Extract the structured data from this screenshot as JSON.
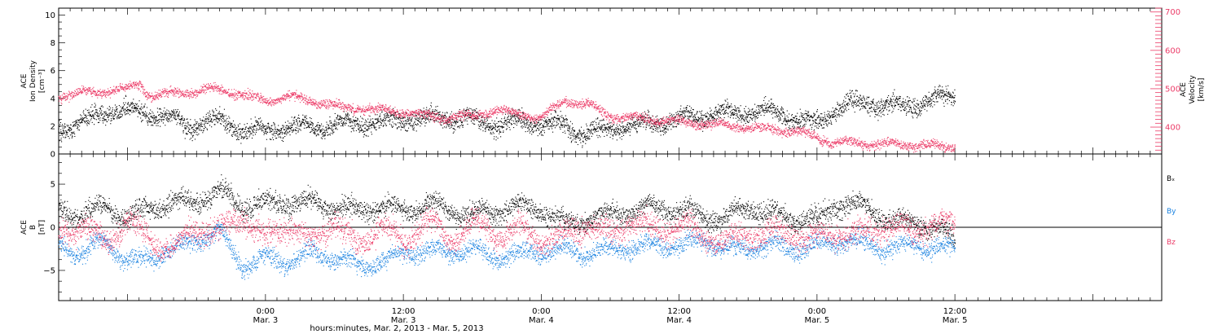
{
  "colors": {
    "black": "#000000",
    "blue": "#1a82e0",
    "red": "#ec3c68",
    "axis": "#000000"
  },
  "chart_data": [
    {
      "type": "scatter",
      "title": "",
      "xlabel": "hours:minutes, Mar. 2, 2013 - Mar. 5, 2013",
      "x_range_hours": [
        0,
        96
      ],
      "x_ticks": [
        {
          "t": 18,
          "time": "0:00",
          "date": "Mar. 3"
        },
        {
          "t": 30,
          "time": "12:00",
          "date": "Mar. 3"
        },
        {
          "t": 42,
          "time": "0:00",
          "date": "Mar. 4"
        },
        {
          "t": 54,
          "time": "12:00",
          "date": "Mar. 4"
        },
        {
          "t": 66,
          "time": "0:00",
          "date": "Mar. 5"
        },
        {
          "t": 78,
          "time": "12:00",
          "date": "Mar. 5"
        }
      ],
      "left_axis": {
        "label_lines": [
          "ACE",
          "Ion Density",
          "[cm⁻³]"
        ],
        "ylim": [
          0,
          10.5
        ],
        "ticks": [
          0,
          2,
          4,
          6,
          8,
          10
        ]
      },
      "right_axis": {
        "label_lines": [
          "ACE",
          "Velocity",
          "[km/s]"
        ],
        "ylim": [
          330,
          710
        ],
        "ticks": [
          400,
          500,
          600,
          700
        ]
      },
      "series": [
        {
          "axis": "left",
          "color": "black",
          "points": [
            [
              0,
              1.8
            ],
            [
              2,
              2.3
            ],
            [
              4,
              3.0
            ],
            [
              6,
              3.2
            ],
            [
              8,
              2.9
            ],
            [
              10,
              2.6
            ],
            [
              11,
              1.9
            ],
            [
              12,
              2.2
            ],
            [
              14,
              2.4
            ],
            [
              16,
              1.8
            ],
            [
              18,
              1.7
            ],
            [
              20,
              2.0
            ],
            [
              22,
              1.9
            ],
            [
              24,
              2.1
            ],
            [
              26,
              2.2
            ],
            [
              28,
              2.3
            ],
            [
              30,
              2.6
            ],
            [
              32,
              2.6
            ],
            [
              34,
              2.7
            ],
            [
              36,
              2.5
            ],
            [
              38,
              2.1
            ],
            [
              40,
              2.4
            ],
            [
              42,
              2.2
            ],
            [
              44,
              2.0
            ],
            [
              46,
              1.5
            ],
            [
              48,
              1.8
            ],
            [
              50,
              2.1
            ],
            [
              52,
              2.3
            ],
            [
              54,
              2.5
            ],
            [
              56,
              2.8
            ],
            [
              58,
              2.9
            ],
            [
              60,
              3.0
            ],
            [
              62,
              3.1
            ],
            [
              64,
              2.6
            ],
            [
              66,
              2.2
            ],
            [
              68,
              3.5
            ],
            [
              70,
              3.7
            ],
            [
              72,
              3.6
            ],
            [
              74,
              3.4
            ],
            [
              76,
              3.9
            ],
            [
              78,
              4.2
            ]
          ]
        },
        {
          "axis": "right",
          "color": "red",
          "points": [
            [
              0,
              480
            ],
            [
              2,
              490
            ],
            [
              4,
              495
            ],
            [
              6,
              500
            ],
            [
              7,
              515
            ],
            [
              8,
              480
            ],
            [
              10,
              490
            ],
            [
              12,
              495
            ],
            [
              14,
              500
            ],
            [
              16,
              485
            ],
            [
              18,
              470
            ],
            [
              20,
              480
            ],
            [
              22,
              470
            ],
            [
              24,
              455
            ],
            [
              26,
              450
            ],
            [
              28,
              445
            ],
            [
              30,
              440
            ],
            [
              32,
              430
            ],
            [
              34,
              425
            ],
            [
              36,
              430
            ],
            [
              38,
              445
            ],
            [
              40,
              435
            ],
            [
              42,
              425
            ],
            [
              44,
              470
            ],
            [
              46,
              460
            ],
            [
              48,
              430
            ],
            [
              50,
              425
            ],
            [
              52,
              420
            ],
            [
              54,
              415
            ],
            [
              56,
              410
            ],
            [
              58,
              405
            ],
            [
              60,
              400
            ],
            [
              62,
              395
            ],
            [
              64,
              390
            ],
            [
              66,
              375
            ],
            [
              67,
              362
            ],
            [
              68,
              360
            ],
            [
              70,
              358
            ],
            [
              72,
              357
            ],
            [
              74,
              355
            ],
            [
              76,
              352
            ],
            [
              78,
              350
            ]
          ]
        }
      ]
    },
    {
      "type": "scatter",
      "title": "",
      "left_axis": {
        "label_lines": [
          "ACE",
          "B",
          "[nT]"
        ],
        "ylim": [
          -8.5,
          8.5
        ],
        "ticks": [
          -5,
          0,
          5
        ]
      },
      "legend": [
        "Bₓ",
        "B_y",
        "B_z"
      ],
      "series": [
        {
          "name": "Bₓ",
          "color": "black",
          "points": [
            [
              0,
              2.0
            ],
            [
              2,
              1.5
            ],
            [
              4,
              2.5
            ],
            [
              6,
              1.0
            ],
            [
              8,
              2.5
            ],
            [
              10,
              2.8
            ],
            [
              12,
              3.0
            ],
            [
              14,
              4.3
            ],
            [
              16,
              2.5
            ],
            [
              18,
              2.8
            ],
            [
              20,
              3.0
            ],
            [
              22,
              2.8
            ],
            [
              24,
              2.5
            ],
            [
              26,
              2.0
            ],
            [
              28,
              2.5
            ],
            [
              30,
              2.0
            ],
            [
              32,
              2.8
            ],
            [
              34,
              2.0
            ],
            [
              36,
              1.5
            ],
            [
              38,
              2.0
            ],
            [
              40,
              2.5
            ],
            [
              42,
              2.0
            ],
            [
              44,
              0.5
            ],
            [
              46,
              1.0
            ],
            [
              48,
              1.5
            ],
            [
              50,
              2.0
            ],
            [
              52,
              2.5
            ],
            [
              54,
              2.0
            ],
            [
              56,
              1.5
            ],
            [
              58,
              1.0
            ],
            [
              60,
              2.5
            ],
            [
              62,
              1.5
            ],
            [
              64,
              1.0
            ],
            [
              66,
              0.8
            ],
            [
              68,
              3.0
            ],
            [
              70,
              2.5
            ],
            [
              72,
              1.0
            ],
            [
              74,
              0.5
            ],
            [
              76,
              0.3
            ],
            [
              78,
              -1.5
            ]
          ]
        },
        {
          "name": "B_y",
          "color": "blue",
          "points": [
            [
              0,
              -2.0
            ],
            [
              2,
              -3.0
            ],
            [
              4,
              -1.5
            ],
            [
              6,
              -4.0
            ],
            [
              8,
              -3.5
            ],
            [
              10,
              -2.5
            ],
            [
              12,
              -1.5
            ],
            [
              14,
              -0.5
            ],
            [
              16,
              -4.5
            ],
            [
              18,
              -3.5
            ],
            [
              20,
              -4.0
            ],
            [
              22,
              -3.0
            ],
            [
              24,
              -3.5
            ],
            [
              26,
              -4.5
            ],
            [
              28,
              -4.0
            ],
            [
              30,
              -3.0
            ],
            [
              32,
              -2.5
            ],
            [
              34,
              -3.0
            ],
            [
              36,
              -2.5
            ],
            [
              38,
              -3.5
            ],
            [
              40,
              -3.0
            ],
            [
              42,
              -2.8
            ],
            [
              44,
              -2.5
            ],
            [
              46,
              -3.0
            ],
            [
              48,
              -2.5
            ],
            [
              50,
              -2.3
            ],
            [
              52,
              -2.0
            ],
            [
              54,
              -2.2
            ],
            [
              56,
              -1.5
            ],
            [
              58,
              -2.5
            ],
            [
              60,
              -2.3
            ],
            [
              62,
              -2.0
            ],
            [
              64,
              -2.5
            ],
            [
              66,
              -2.0
            ],
            [
              68,
              -1.5
            ],
            [
              70,
              -1.8
            ],
            [
              72,
              -2.5
            ],
            [
              74,
              -2.0
            ],
            [
              76,
              -2.3
            ],
            [
              78,
              -2.5
            ]
          ]
        },
        {
          "name": "B_z",
          "color": "red",
          "points": [
            [
              0,
              -1.0
            ],
            [
              2,
              0.5
            ],
            [
              4,
              -2.0
            ],
            [
              6,
              1.0
            ],
            [
              8,
              -1.5
            ],
            [
              10,
              -2.5
            ],
            [
              12,
              0.0
            ],
            [
              14,
              -0.5
            ],
            [
              16,
              1.5
            ],
            [
              18,
              -1.5
            ],
            [
              20,
              0.5
            ],
            [
              22,
              -2.0
            ],
            [
              24,
              1.0
            ],
            [
              26,
              -2.5
            ],
            [
              28,
              0.5
            ],
            [
              30,
              -2.0
            ],
            [
              32,
              1.0
            ],
            [
              34,
              -1.5
            ],
            [
              36,
              0.5
            ],
            [
              38,
              -1.0
            ],
            [
              40,
              0.0
            ],
            [
              42,
              -1.5
            ],
            [
              44,
              -1.0
            ],
            [
              46,
              0.5
            ],
            [
              48,
              -1.0
            ],
            [
              50,
              1.0
            ],
            [
              52,
              -0.5
            ],
            [
              54,
              0.5
            ],
            [
              56,
              -1.0
            ],
            [
              58,
              -1.5
            ],
            [
              60,
              -1.0
            ],
            [
              62,
              -0.5
            ],
            [
              64,
              -1.0
            ],
            [
              66,
              -1.2
            ],
            [
              68,
              -0.5
            ],
            [
              70,
              -0.8
            ],
            [
              72,
              0.5
            ],
            [
              74,
              -0.5
            ],
            [
              76,
              0.5
            ],
            [
              78,
              0.0
            ]
          ]
        }
      ]
    }
  ]
}
